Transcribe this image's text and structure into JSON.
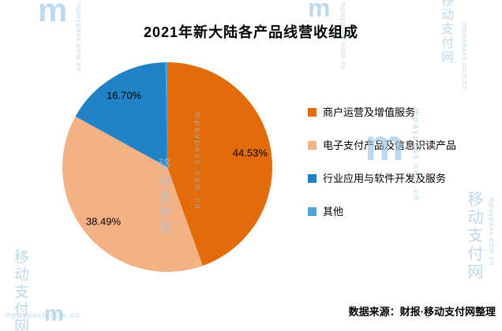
{
  "source": "数据来源：财报·移动支付网整理",
  "watermark": {
    "cn": "移动支付网",
    "en": "mpaypass.com.cn",
    "logo": "m"
  },
  "chart_data": {
    "type": "pie",
    "title": "2021年新大陆各产品线营收组成",
    "labels": [
      "商户运营及增值服务",
      "电子支付产品及信息识读产品",
      "行业应用与软件开发及服务",
      "其他"
    ],
    "values": [
      44.53,
      38.49,
      16.7,
      0.28
    ],
    "data_labels": [
      "44.53%",
      "38.49%",
      "16.70%",
      ""
    ],
    "colors": [
      "#e36c0a",
      "#f4b183",
      "#1f83c6",
      "#4fa3db"
    ],
    "legend_position": "right",
    "start_angle_deg": 0,
    "direction": "clockwise",
    "source": "数据来源：财报·移动支付网整理"
  }
}
